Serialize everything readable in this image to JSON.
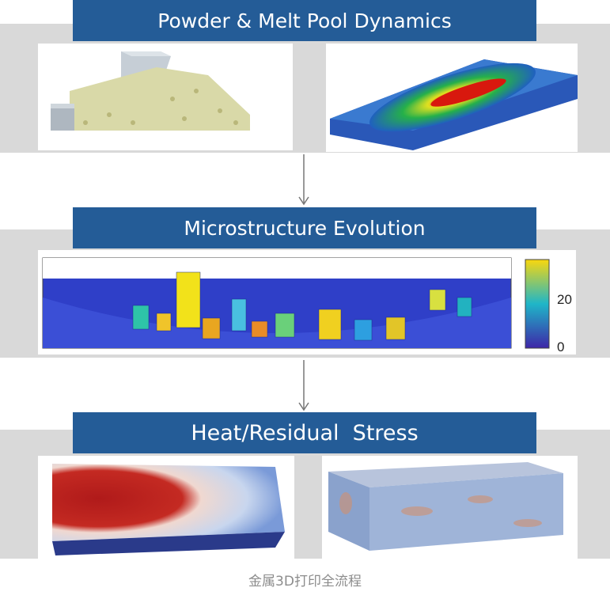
{
  "sections": [
    {
      "title": "Powder & Melt Pool Dynamics"
    },
    {
      "title": "Microstructure Evolution",
      "colorbar_labels": [
        "20",
        "0"
      ]
    },
    {
      "title": "Heat/Residual  Stress"
    }
  ],
  "caption": "金属3D打印全流程"
}
